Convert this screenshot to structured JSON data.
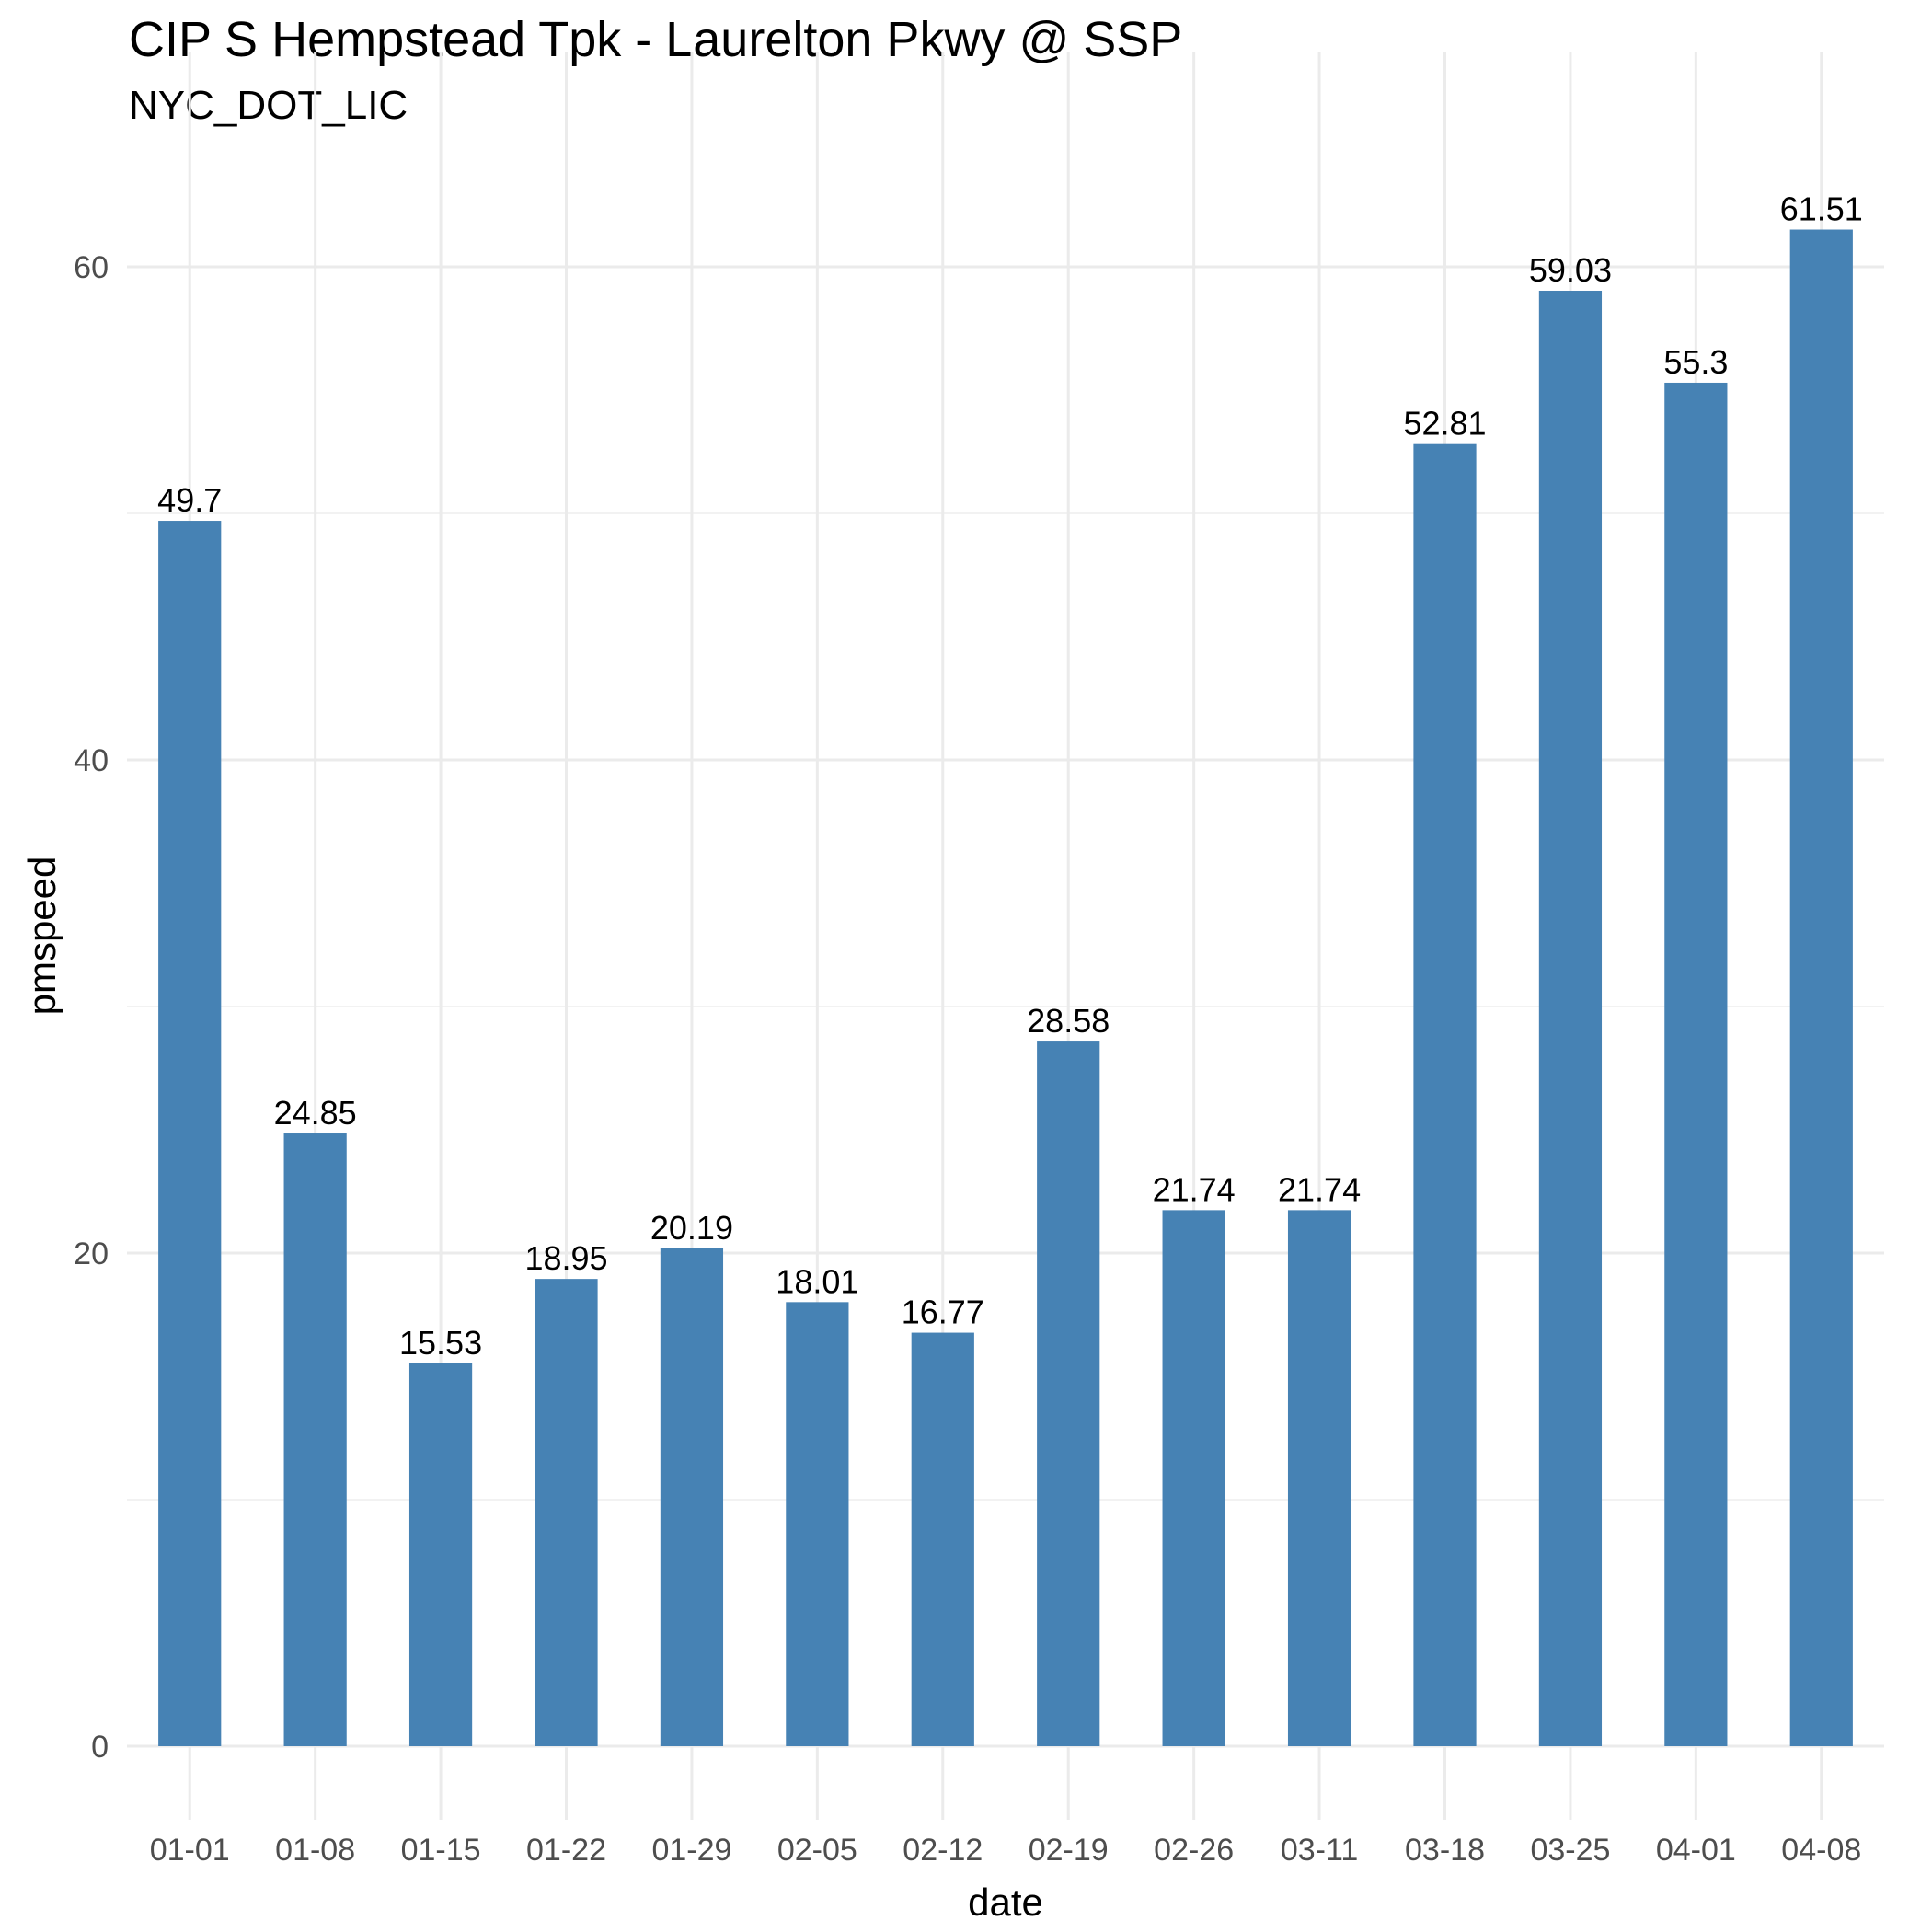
{
  "title": "CIP S Hempstead Tpk - Laurelton Pkwy @ SSP",
  "subtitle": "NYC_DOT_LIC",
  "chart_data": {
    "type": "bar",
    "categories": [
      "01-01",
      "01-08",
      "01-15",
      "01-22",
      "01-29",
      "02-05",
      "02-12",
      "02-19",
      "02-26",
      "03-11",
      "03-18",
      "03-25",
      "04-01",
      "04-08"
    ],
    "values": [
      49.7,
      24.85,
      15.53,
      18.95,
      20.19,
      18.01,
      16.77,
      28.58,
      21.74,
      21.74,
      52.81,
      59.03,
      55.3,
      61.51
    ],
    "data_labels": [
      "49.7",
      "24.85",
      "15.53",
      "18.95",
      "20.19",
      "18.01",
      "16.77",
      "28.58",
      "21.74",
      "21.74",
      "52.81",
      "59.03",
      "55.3",
      "61.51"
    ],
    "xlabel": "date",
    "ylabel": "pmspeed",
    "ylim": [
      0,
      65
    ],
    "yticks": [
      0,
      20,
      40,
      60
    ],
    "grid": true,
    "bar_color": "#4682b4"
  }
}
